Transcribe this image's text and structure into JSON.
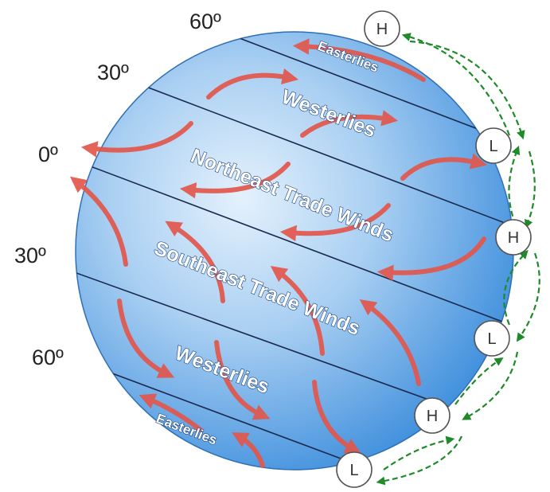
{
  "latitudes": {
    "north_60": "60º",
    "north_30": "30º",
    "equator": "0º",
    "south_30": "30º",
    "south_60": "60º"
  },
  "wind_belts": {
    "north_easterlies": "Easterlies",
    "north_westerlies": "Westerlies",
    "northeast_trades": "Northeast Trade Winds",
    "southeast_trades": "Southeast Trade Winds",
    "south_westerlies": "Westerlies",
    "south_easterlies": "Easterlies"
  },
  "pressure_zones": [
    {
      "label": "H"
    },
    {
      "label": "L"
    },
    {
      "label": "H"
    },
    {
      "label": "L"
    },
    {
      "label": "H"
    },
    {
      "label": "L"
    }
  ],
  "colors": {
    "ocean_light": "#d9ebfb",
    "ocean_dark": "#3f8fdd",
    "wind_arrow": "#e2574c",
    "circulation_arrow": "#1f8a2a",
    "latitude_line": "#1a2a4f"
  }
}
